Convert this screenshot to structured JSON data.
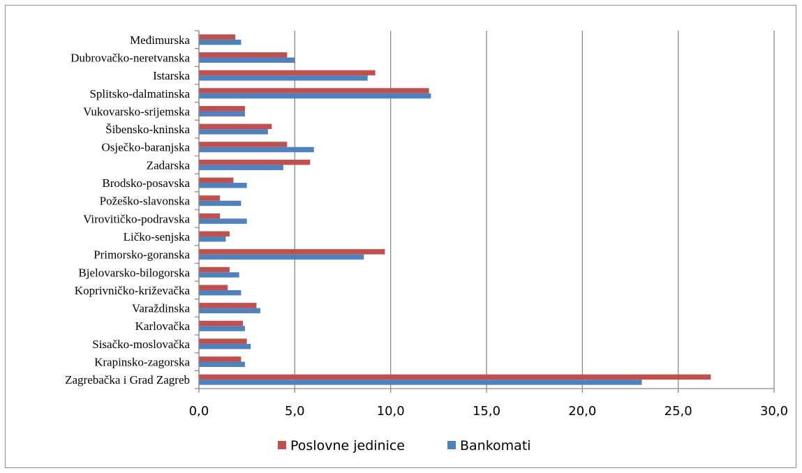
{
  "chart_data": {
    "type": "bar",
    "orientation": "horizontal",
    "categories": [
      "Zagrebačka i Grad Zagreb",
      "Krapinsko-zagorska",
      "Sisačko-moslovačka",
      "Karlovačka",
      "Varaždinska",
      "Koprivničko-križevačka",
      "Bjelovarsko-bilogorska",
      "Primorsko-goranska",
      "Ličko-senjska",
      "Virovitičko-podravska",
      "Požeško-slavonska",
      "Brodsko-posavska",
      "Zadarska",
      "Osječko-baranjska",
      "Šibensko-kninska",
      "Vukovarsko-srijemska",
      "Splitsko-dalmatinska",
      "Istarska",
      "Dubrovačko-neretvanska",
      "Međimurska"
    ],
    "series": [
      {
        "name": "Poslovne jedinice",
        "color": "#c0504d",
        "values": [
          26.7,
          2.2,
          2.5,
          2.3,
          3.0,
          1.5,
          1.6,
          9.7,
          1.6,
          1.1,
          1.1,
          1.8,
          5.8,
          4.6,
          3.8,
          2.4,
          12.0,
          9.2,
          4.6,
          1.9
        ]
      },
      {
        "name": "Bankomati",
        "color": "#4f81bd",
        "values": [
          23.1,
          2.4,
          2.7,
          2.4,
          3.2,
          2.2,
          2.1,
          8.6,
          1.4,
          2.5,
          2.2,
          2.5,
          4.4,
          6.0,
          3.6,
          2.4,
          12.1,
          8.8,
          5.0,
          2.2
        ]
      }
    ],
    "xlim": [
      0,
      30
    ],
    "xticks": [
      "0,0",
      "5,0",
      "10,0",
      "15,0",
      "20,0",
      "25,0",
      "30,0"
    ],
    "grid": true,
    "legend": "bottom",
    "title": "",
    "xlabel": "",
    "ylabel": ""
  }
}
